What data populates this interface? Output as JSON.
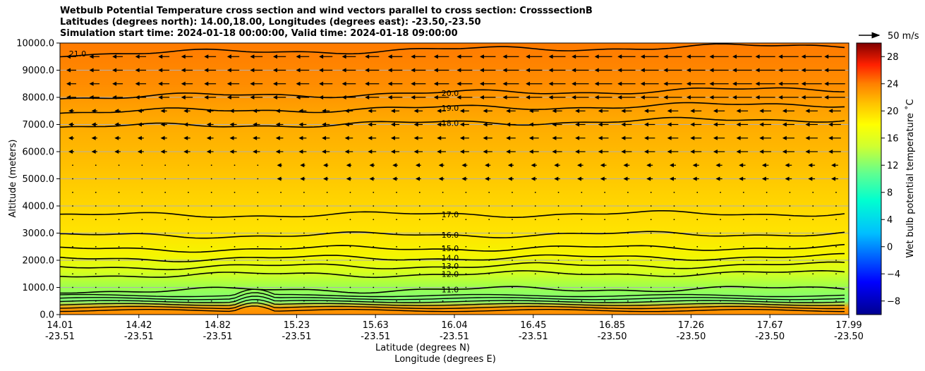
{
  "chart_data": {
    "type": "heatmap",
    "title": [
      "Wetbulb Potential Temperature cross section and wind vectors parallel to cross section: CrosssectionB",
      "Latitudes (degrees north): 14.00,18.00, Longitudes (degrees east): -23.50,-23.50",
      "Simulation start time: 2024-01-18 00:00:00, Valid time: 2024-01-18 09:00:00"
    ],
    "ylabel": "Altitude (meters)",
    "xlabel": "Latitude (degrees N)",
    "xlabel2": "Longitude (degrees E)",
    "ylim": [
      0,
      10000
    ],
    "yticks": [
      "0.0",
      "1000.0",
      "2000.0",
      "3000.0",
      "4000.0",
      "5000.0",
      "6000.0",
      "7000.0",
      "8000.0",
      "9000.0",
      "10000.0"
    ],
    "xticks": [
      {
        "lat": "14.01",
        "lon": "-23.51"
      },
      {
        "lat": "14.42",
        "lon": "-23.51"
      },
      {
        "lat": "14.82",
        "lon": "-23.51"
      },
      {
        "lat": "15.23",
        "lon": "-23.51"
      },
      {
        "lat": "15.63",
        "lon": "-23.51"
      },
      {
        "lat": "16.04",
        "lon": "-23.51"
      },
      {
        "lat": "16.45",
        "lon": "-23.51"
      },
      {
        "lat": "16.85",
        "lon": "-23.50"
      },
      {
        "lat": "17.26",
        "lon": "-23.50"
      },
      {
        "lat": "17.67",
        "lon": "-23.50"
      },
      {
        "lat": "17.99",
        "lon": "-23.50"
      }
    ],
    "grid": "horizontal",
    "colorbar": {
      "label": "Wet bulb potential temperature ˚C",
      "range": [
        -10,
        30
      ],
      "ticks": [
        "−8",
        "−4",
        "0",
        "4",
        "8",
        "12",
        "16",
        "20",
        "24",
        "28"
      ]
    },
    "quiver_key": "50 m/s",
    "contours": [
      {
        "label": "20.0",
        "alt": 8000
      },
      {
        "label": "19.0",
        "alt": 7450
      },
      {
        "label": "18.0",
        "alt": 6900
      },
      {
        "label": "17.0",
        "alt": 3650
      },
      {
        "label": "16.0",
        "alt": 2900
      },
      {
        "label": "15.0",
        "alt": 2400
      },
      {
        "label": "14.0",
        "alt": 2050
      },
      {
        "label": "13.0",
        "alt": 1750
      },
      {
        "label": "12.0",
        "alt": 1450
      },
      {
        "label": "11.0",
        "alt": 880
      },
      {
        "label": "21.0",
        "alt": 9600
      }
    ]
  }
}
